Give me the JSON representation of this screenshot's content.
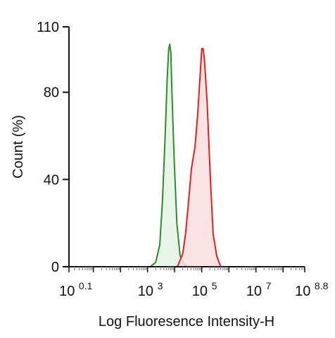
{
  "chart_data": {
    "type": "area",
    "title": "",
    "xlabel": "Log Fluoresence Intensity-H",
    "ylabel": "Count  (%)",
    "x_scale": "log10",
    "xlim": [
      0.1,
      8.8
    ],
    "ylim": [
      0,
      110
    ],
    "x_ticks": [
      {
        "base": "10",
        "exp": "0.1",
        "value": 0.1
      },
      {
        "base": "10",
        "exp": "3",
        "value": 3
      },
      {
        "base": "10",
        "exp": "5",
        "value": 5
      },
      {
        "base": "10",
        "exp": "7",
        "value": 7
      },
      {
        "base": "10",
        "exp": "8.8",
        "value": 8.8
      }
    ],
    "y_ticks": [
      "0",
      "40",
      "80",
      "110"
    ],
    "grid": false,
    "legend": "none",
    "series": [
      {
        "color": "#2e8b2e",
        "fill": "#e4f2e4",
        "points": [
          [
            3.1,
            0
          ],
          [
            3.3,
            2
          ],
          [
            3.45,
            10
          ],
          [
            3.55,
            30
          ],
          [
            3.65,
            60
          ],
          [
            3.72,
            85
          ],
          [
            3.78,
            100
          ],
          [
            3.82,
            102
          ],
          [
            3.86,
            98
          ],
          [
            3.9,
            80
          ],
          [
            3.98,
            50
          ],
          [
            4.08,
            20
          ],
          [
            4.2,
            5
          ],
          [
            4.35,
            1
          ],
          [
            4.5,
            0
          ]
        ]
      },
      {
        "color": "#e02020",
        "fill": "#fbdede",
        "points": [
          [
            4.1,
            0
          ],
          [
            4.3,
            6
          ],
          [
            4.4,
            15
          ],
          [
            4.5,
            28
          ],
          [
            4.62,
            45
          ],
          [
            4.75,
            55
          ],
          [
            4.85,
            70
          ],
          [
            4.95,
            90
          ],
          [
            5.0,
            100
          ],
          [
            5.05,
            100
          ],
          [
            5.1,
            95
          ],
          [
            5.2,
            75
          ],
          [
            5.32,
            40
          ],
          [
            5.42,
            15
          ],
          [
            5.55,
            5
          ],
          [
            5.7,
            0
          ]
        ]
      }
    ]
  }
}
